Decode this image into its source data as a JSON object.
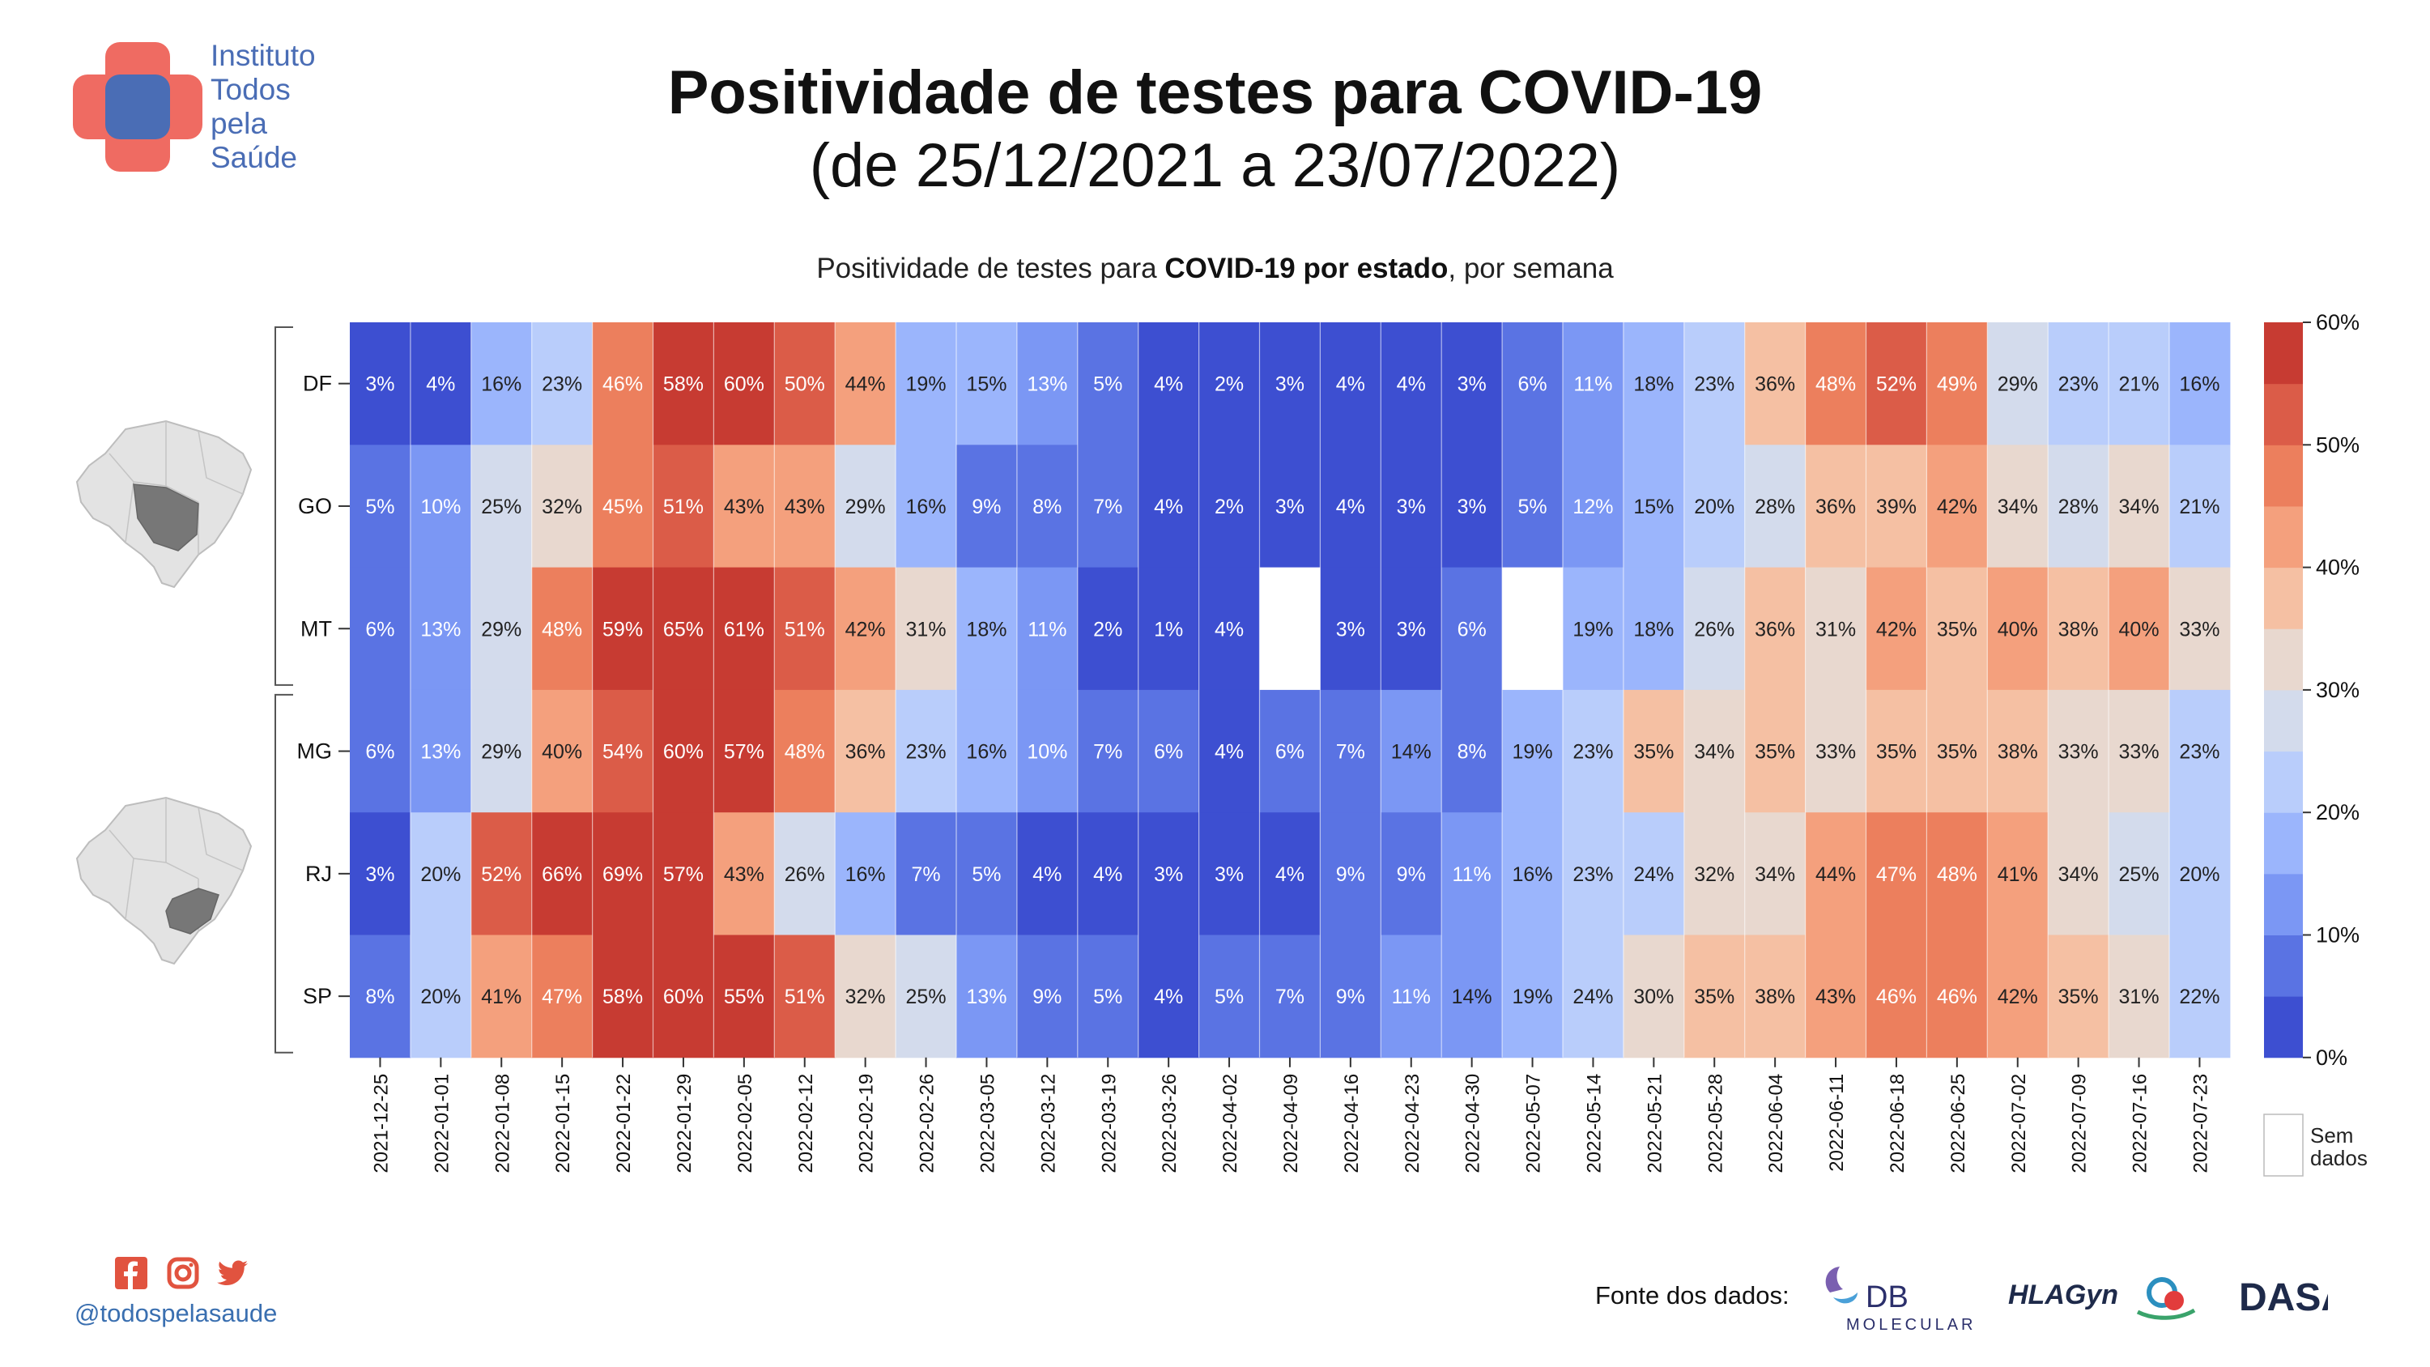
{
  "header": {
    "title": "Positividade de testes para COVID-19",
    "subtitle": "(de 25/12/2021 a 23/07/2022)"
  },
  "logo": {
    "lines": [
      "Instituto",
      "Todos",
      "pela",
      "Saúde"
    ]
  },
  "chart_caption": {
    "prefix": "Positividade de testes para ",
    "bold": "COVID-19 por estado",
    "suffix": ", por semana"
  },
  "colors": {
    "scale_0_5": "#3d4fd1",
    "scale_5_10": "#5a73e3",
    "scale_10_15": "#7b97f4",
    "scale_15_20": "#9bb5fc",
    "scale_20_25": "#b9cdfb",
    "scale_25_30": "#d3dbec",
    "scale_30_35": "#e8d8cf",
    "scale_35_40": "#f5c0a3",
    "scale_40_45": "#f4a07d",
    "scale_45_50": "#ec7f5d",
    "scale_50_55": "#db5c48",
    "scale_55_60": "#c73b32",
    "no_data": "#ffffff",
    "brand_blue": "#4a6db5",
    "brand_red": "#ef6b62"
  },
  "chart_data": {
    "type": "heatmap",
    "title": "Positividade de testes para COVID-19 por estado, por semana",
    "x": [
      "2021-12-25",
      "2022-01-01",
      "2022-01-08",
      "2022-01-15",
      "2022-01-22",
      "2022-01-29",
      "2022-02-05",
      "2022-02-12",
      "2022-02-19",
      "2022-02-26",
      "2022-03-05",
      "2022-03-12",
      "2022-03-19",
      "2022-03-26",
      "2022-04-02",
      "2022-04-09",
      "2022-04-16",
      "2022-04-23",
      "2022-04-30",
      "2022-05-07",
      "2022-05-14",
      "2022-05-21",
      "2022-05-28",
      "2022-06-04",
      "2022-06-11",
      "2022-06-18",
      "2022-06-25",
      "2022-07-02",
      "2022-07-09",
      "2022-07-16",
      "2022-07-23"
    ],
    "y": [
      "DF",
      "GO",
      "MT",
      "MG",
      "RJ",
      "SP"
    ],
    "values": [
      [
        3,
        4,
        16,
        23,
        46,
        58,
        60,
        50,
        44,
        19,
        15,
        13,
        5,
        4,
        2,
        3,
        4,
        4,
        3,
        6,
        11,
        18,
        23,
        36,
        48,
        52,
        49,
        29,
        23,
        21,
        16
      ],
      [
        5,
        10,
        25,
        32,
        45,
        51,
        43,
        43,
        29,
        16,
        9,
        8,
        7,
        4,
        2,
        3,
        4,
        3,
        3,
        5,
        12,
        15,
        20,
        28,
        36,
        39,
        42,
        34,
        28,
        34,
        21
      ],
      [
        6,
        13,
        29,
        48,
        59,
        65,
        61,
        51,
        42,
        31,
        18,
        11,
        2,
        1,
        4,
        null,
        3,
        3,
        6,
        null,
        19,
        18,
        26,
        36,
        31,
        42,
        35,
        40,
        38,
        40,
        33
      ],
      [
        6,
        13,
        29,
        40,
        54,
        60,
        57,
        48,
        36,
        23,
        16,
        10,
        7,
        6,
        4,
        6,
        7,
        14,
        8,
        19,
        23,
        35,
        34,
        35,
        33,
        35,
        35,
        38,
        33,
        33,
        23
      ],
      [
        3,
        20,
        52,
        66,
        69,
        57,
        43,
        26,
        16,
        7,
        5,
        4,
        4,
        3,
        3,
        4,
        9,
        9,
        11,
        16,
        23,
        24,
        32,
        34,
        44,
        47,
        48,
        41,
        34,
        25,
        20
      ],
      [
        8,
        20,
        41,
        47,
        58,
        60,
        55,
        51,
        32,
        25,
        13,
        9,
        5,
        4,
        5,
        7,
        9,
        11,
        14,
        19,
        24,
        30,
        35,
        38,
        43,
        46,
        46,
        42,
        35,
        31,
        22
      ]
    ],
    "value_suffix": "%",
    "colorbar": {
      "range": [
        0,
        60
      ],
      "ticks": [
        "0%",
        "10%",
        "20%",
        "30%",
        "40%",
        "50%",
        "60%"
      ]
    },
    "no_data_label": [
      "Sem",
      "dados"
    ],
    "groups": [
      {
        "rows": [
          "DF",
          "GO",
          "MT"
        ],
        "map_highlight": "Centro-Oeste"
      },
      {
        "rows": [
          "MG",
          "RJ",
          "SP"
        ],
        "map_highlight": "Sudeste"
      }
    ]
  },
  "footer": {
    "handle": "@todospelasaude",
    "social_icons": [
      "facebook-icon",
      "instagram-icon",
      "twitter-icon"
    ],
    "source_label": "Fonte dos dados:",
    "partners": [
      "DB MOLECULAR",
      "HLAGyn",
      "DASA"
    ]
  }
}
